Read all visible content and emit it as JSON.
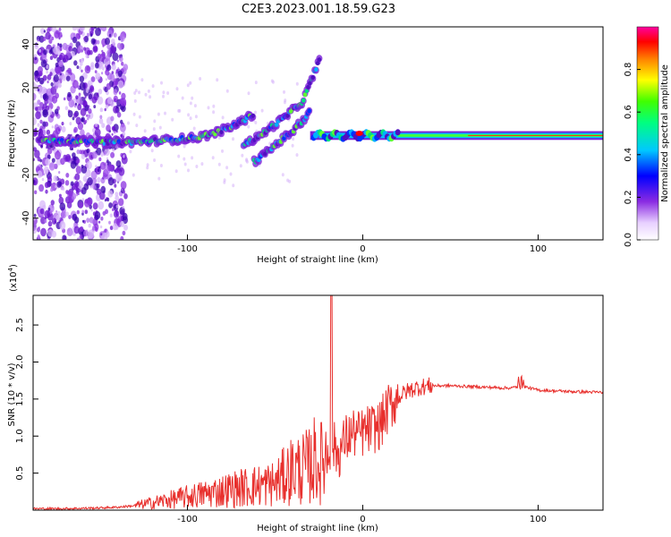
{
  "title": "C2E3.2023.001.18.59.G23",
  "chart_data": [
    {
      "type": "heatmap",
      "xlabel": "Height of straight line (km)",
      "ylabel": "Frequency (Hz)",
      "xlim": [
        -188,
        137
      ],
      "ylim": [
        -50,
        48
      ],
      "xticks": [
        -100,
        0,
        100
      ],
      "yticks": [
        -40,
        -20,
        0,
        20,
        40
      ],
      "colorbar": {
        "label": "Normalized spectral amplitude",
        "range": [
          0.0,
          1.0
        ],
        "ticks": [
          0.0,
          0.2,
          0.4,
          0.6,
          0.8
        ],
        "tick_labels": [
          "0.0",
          "0.2",
          "0.4",
          "0.6",
          "0.8"
        ]
      },
      "features": [
        {
          "name": "main",
          "points": [
            [
              -185,
              -4
            ],
            [
              -150,
              -5
            ],
            [
              -130,
              -5
            ],
            [
              -110,
              -4
            ],
            [
              -95,
              -3
            ],
            [
              -85,
              -1
            ],
            [
              -75,
              2
            ],
            [
              -68,
              5
            ],
            [
              -62,
              8
            ]
          ]
        },
        {
          "name": "branch",
          "points": [
            [
              -68,
              -6
            ],
            [
              -60,
              -3
            ],
            [
              -52,
              2
            ],
            [
              -45,
              6
            ],
            [
              -38,
              11
            ],
            [
              -34,
              14
            ],
            [
              -31,
              20
            ],
            [
              -28,
              26
            ],
            [
              -24,
              34
            ]
          ]
        },
        {
          "name": "branch-low",
          "points": [
            [
              -62,
              -14
            ],
            [
              -55,
              -10
            ],
            [
              -48,
              -5
            ],
            [
              -40,
              0
            ],
            [
              -34,
              5
            ],
            [
              -30,
              10
            ]
          ]
        },
        {
          "name": "carrier",
          "points": [
            [
              -30,
              -2
            ],
            [
              -20,
              -1
            ],
            [
              -10,
              -2
            ],
            [
              0,
              -1
            ],
            [
              20,
              -2
            ],
            [
              60,
              -2
            ],
            [
              100,
              -2
            ],
            [
              137,
              -2
            ]
          ]
        }
      ]
    },
    {
      "type": "line",
      "xlabel": "Height of straight line (km)",
      "ylabel": "SNR (10 * v/v)",
      "yscale_label": "(x10",
      "yscale_exp": "4",
      "yscale_close": ")",
      "xlim": [
        -188,
        137
      ],
      "ylim": [
        0,
        2.9
      ],
      "xticks": [
        -100,
        0,
        100
      ],
      "yticks": [
        0.5,
        1.0,
        1.5,
        2.0,
        2.5
      ],
      "ytick_labels": [
        "0.5",
        "1.0",
        "1.5",
        "2.0",
        "2.5"
      ],
      "line_color": "#e8302d",
      "series": [
        {
          "x": [
            -188,
            -170,
            -150,
            -140,
            -130,
            -120,
            -110,
            -100,
            -90,
            -80,
            -70,
            -60,
            -50,
            -45,
            -40,
            -35,
            -30,
            -27,
            -25,
            -22,
            -20,
            -18,
            -16,
            -14,
            -12,
            -10,
            -8,
            -5,
            -2,
            0,
            3,
            6,
            10,
            13,
            16,
            20,
            25,
            30,
            35,
            40,
            50,
            60,
            70,
            80,
            85,
            90,
            95,
            100,
            110,
            120,
            137
          ],
          "y": [
            0.02,
            0.02,
            0.03,
            0.04,
            0.06,
            0.1,
            0.14,
            0.18,
            0.22,
            0.26,
            0.3,
            0.33,
            0.36,
            0.45,
            0.55,
            0.55,
            0.6,
            0.7,
            0.6,
            0.7,
            0.8,
            0.9,
            0.85,
            0.75,
            0.85,
            0.95,
            1.0,
            1.05,
            1.0,
            1.05,
            1.08,
            1.1,
            1.15,
            1.3,
            1.42,
            1.52,
            1.6,
            1.65,
            1.67,
            1.68,
            1.68,
            1.67,
            1.66,
            1.65,
            1.65,
            1.68,
            1.65,
            1.62,
            1.61,
            1.6,
            1.59
          ]
        }
      ]
    }
  ]
}
